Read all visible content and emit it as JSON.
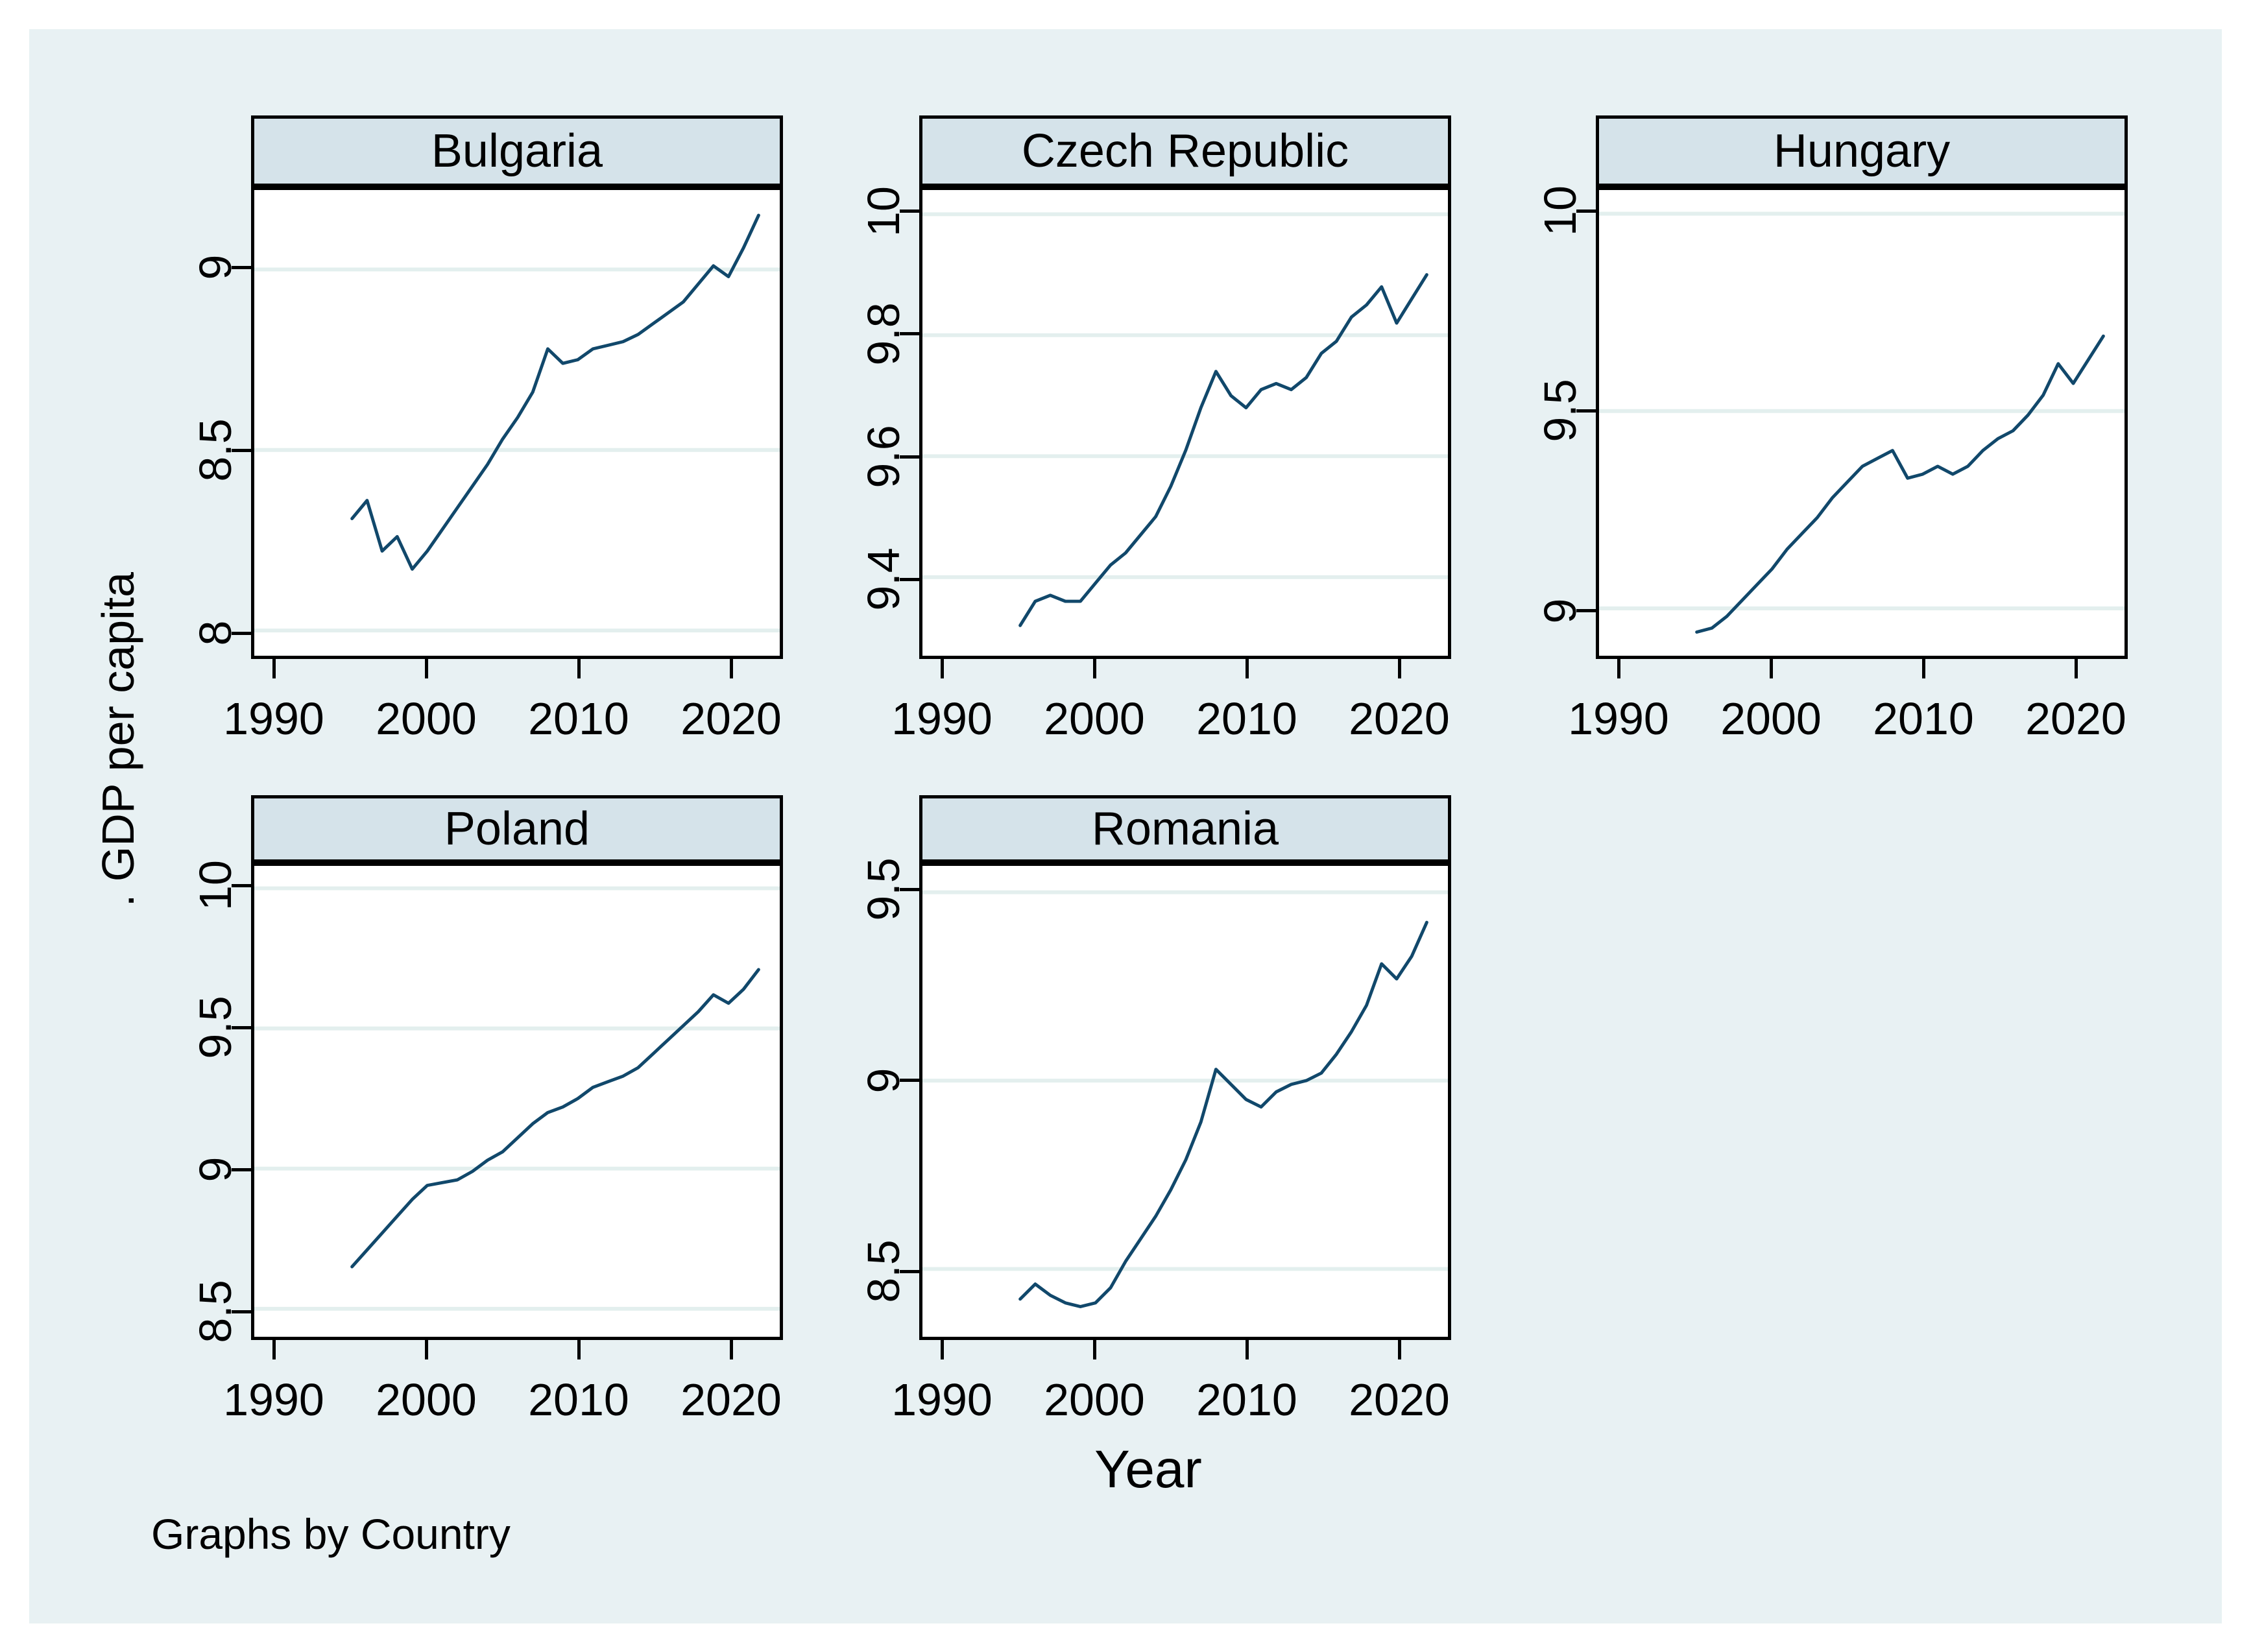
{
  "chart_data": {
    "type": "line",
    "facet_by": "Country",
    "xlabel": "Year",
    "ylabel": ". GDP per capita",
    "note": "Graphs by Country",
    "x_ticks": [
      1990,
      2000,
      2010,
      2020
    ],
    "xlim": [
      1988.5,
      2023.4
    ],
    "years": [
      1995,
      1996,
      1997,
      1998,
      1999,
      2000,
      2001,
      2002,
      2003,
      2004,
      2005,
      2006,
      2007,
      2008,
      2009,
      2010,
      2011,
      2012,
      2013,
      2014,
      2015,
      2016,
      2017,
      2018,
      2019,
      2020,
      2021,
      2022
    ],
    "panels": [
      {
        "title": "Bulgaria",
        "yticks": [
          8,
          8.5,
          9
        ],
        "ylim": [
          7.93,
          9.22
        ],
        "values": [
          8.31,
          8.36,
          8.22,
          8.26,
          8.17,
          8.22,
          8.28,
          8.34,
          8.4,
          8.46,
          8.53,
          8.59,
          8.66,
          8.78,
          8.74,
          8.75,
          8.78,
          8.79,
          8.8,
          8.82,
          8.85,
          8.88,
          8.91,
          8.96,
          9.01,
          8.98,
          9.06,
          9.15
        ]
      },
      {
        "title": "Czech Republic",
        "yticks": [
          9.4,
          9.6,
          9.8,
          10
        ],
        "ylim": [
          9.27,
          10.04
        ],
        "values": [
          9.32,
          9.36,
          9.37,
          9.36,
          9.36,
          9.39,
          9.42,
          9.44,
          9.47,
          9.5,
          9.55,
          9.61,
          9.68,
          9.74,
          9.7,
          9.68,
          9.71,
          9.72,
          9.71,
          9.73,
          9.77,
          9.79,
          9.83,
          9.85,
          9.88,
          9.82,
          9.86,
          9.9
        ]
      },
      {
        "title": "Hungary",
        "yticks": [
          9,
          9.5,
          10
        ],
        "ylim": [
          8.88,
          10.06
        ],
        "values": [
          8.94,
          8.95,
          8.98,
          9.02,
          9.06,
          9.1,
          9.15,
          9.19,
          9.23,
          9.28,
          9.32,
          9.36,
          9.38,
          9.4,
          9.33,
          9.34,
          9.36,
          9.34,
          9.36,
          9.4,
          9.43,
          9.45,
          9.49,
          9.54,
          9.62,
          9.57,
          9.63,
          9.69
        ]
      },
      {
        "title": "Poland",
        "yticks": [
          8.5,
          9,
          9.5,
          10
        ],
        "ylim": [
          8.4,
          10.08
        ],
        "values": [
          8.65,
          8.71,
          8.77,
          8.83,
          8.89,
          8.94,
          8.95,
          8.96,
          8.99,
          9.03,
          9.06,
          9.11,
          9.16,
          9.2,
          9.22,
          9.25,
          9.29,
          9.31,
          9.33,
          9.36,
          9.41,
          9.46,
          9.51,
          9.56,
          9.62,
          9.59,
          9.64,
          9.71
        ]
      },
      {
        "title": "Romania",
        "yticks": [
          8.5,
          9,
          9.5
        ],
        "ylim": [
          8.32,
          9.57
        ],
        "values": [
          8.42,
          8.46,
          8.43,
          8.41,
          8.4,
          8.41,
          8.45,
          8.52,
          8.58,
          8.64,
          8.71,
          8.79,
          8.89,
          9.03,
          8.99,
          8.95,
          8.93,
          8.97,
          8.99,
          9.0,
          9.02,
          9.07,
          9.13,
          9.2,
          9.31,
          9.27,
          9.33,
          9.42
        ]
      }
    ],
    "colors": {
      "line": "#11486b",
      "figure_bg": "#e8f1f3",
      "header_fill": "#d5e3ea",
      "plot_bg": "#ffffff",
      "grid": "#e3efee",
      "border": "#000000",
      "text": "#000000"
    },
    "legend": "none",
    "grid": "horizontal"
  }
}
